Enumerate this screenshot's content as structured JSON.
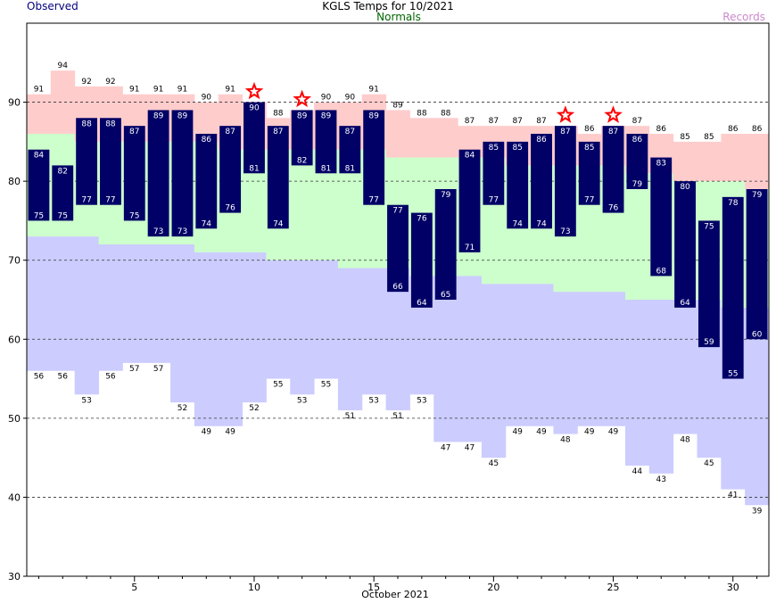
{
  "chart_data": {
    "type": "bar",
    "title": "KGLS Temps for 10/2021",
    "legend": {
      "observed": "Observed",
      "normals": "Normals",
      "records": "Records"
    },
    "xlabel": "October 2021",
    "ylim": [
      30,
      100
    ],
    "yticks": [
      30,
      40,
      50,
      60,
      70,
      80,
      90
    ],
    "xticks": [
      5,
      10,
      15,
      20,
      25,
      30
    ],
    "grid": "dashed horizontal",
    "days": [
      1,
      2,
      3,
      4,
      5,
      6,
      7,
      8,
      9,
      10,
      11,
      12,
      13,
      14,
      15,
      16,
      17,
      18,
      19,
      20,
      21,
      22,
      23,
      24,
      25,
      26,
      27,
      28,
      29,
      30,
      31
    ],
    "observed_high": [
      84,
      82,
      88,
      88,
      87,
      89,
      89,
      86,
      87,
      90,
      87,
      89,
      89,
      87,
      89,
      77,
      76,
      79,
      84,
      85,
      85,
      86,
      87,
      85,
      87,
      86,
      83,
      80,
      75,
      78,
      79
    ],
    "observed_low": [
      75,
      75,
      77,
      77,
      75,
      73,
      73,
      74,
      76,
      81,
      74,
      82,
      81,
      81,
      77,
      66,
      64,
      65,
      71,
      77,
      74,
      74,
      73,
      77,
      76,
      79,
      68,
      64,
      59,
      55,
      60
    ],
    "record_high": [
      91,
      94,
      92,
      92,
      91,
      91,
      91,
      90,
      91,
      90,
      88,
      89,
      90,
      90,
      91,
      89,
      88,
      88,
      87,
      87,
      87,
      87,
      87,
      86,
      87,
      87,
      86,
      85,
      85,
      86,
      86
    ],
    "record_low": [
      56,
      56,
      53,
      56,
      57,
      57,
      52,
      49,
      49,
      52,
      55,
      53,
      55,
      51,
      53,
      51,
      53,
      47,
      47,
      45,
      49,
      49,
      48,
      49,
      49,
      44,
      43,
      48,
      45,
      41,
      39
    ],
    "normal_high": [
      86,
      86,
      85,
      85,
      85,
      85,
      85,
      85,
      84,
      84,
      84,
      84,
      84,
      84,
      84,
      83,
      83,
      83,
      83,
      83,
      82,
      82,
      82,
      82,
      82,
      81,
      81,
      80,
      80,
      80,
      79
    ],
    "normal_low": [
      73,
      73,
      73,
      72,
      72,
      72,
      72,
      71,
      71,
      71,
      70,
      70,
      70,
      69,
      69,
      69,
      68,
      68,
      68,
      67,
      67,
      67,
      66,
      66,
      66,
      65,
      65,
      65,
      65,
      64,
      64
    ],
    "record_set_days": [
      10,
      12,
      23,
      25
    ],
    "colors": {
      "observed": "#000066",
      "normals": "#ccffcc",
      "record_high": "#ffcccc",
      "record_low": "#ccccff",
      "star": "#ff0000",
      "title_observed": "#000080",
      "title_normals": "#006600",
      "title_records": "#cc88cc"
    }
  }
}
